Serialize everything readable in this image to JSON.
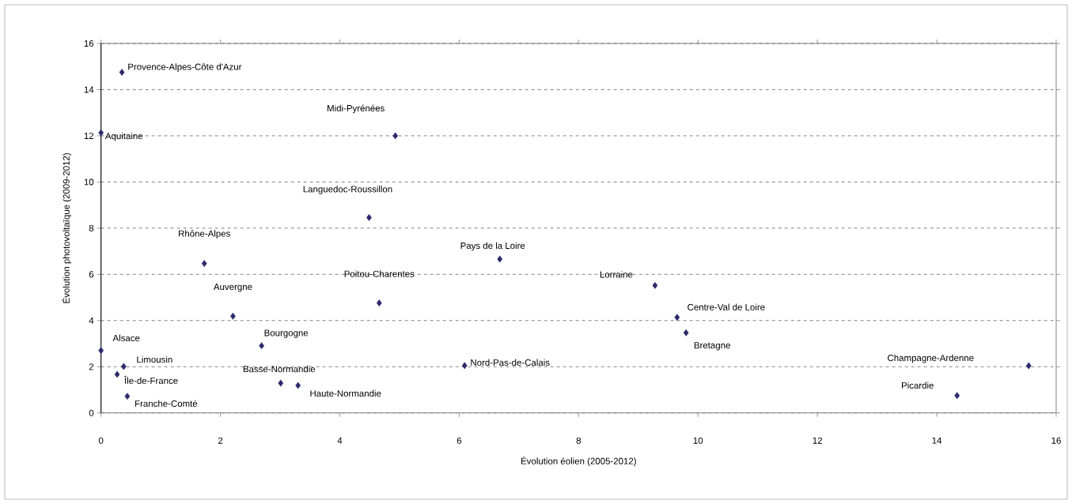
{
  "chart_data": {
    "type": "scatter",
    "xlabel": "Évolution éolien (2005-2012)",
    "ylabel": "Évolution photovoltaïque (2009-2012)",
    "x": [
      0.35,
      0,
      4.93,
      4.49,
      1.73,
      2.21,
      4.66,
      0,
      0.38,
      0.27,
      0.44,
      2.69,
      3.01,
      3.3,
      6.68,
      6.09,
      9.28,
      9.65,
      9.8,
      15.54,
      14.34
    ],
    "values": [
      14.75,
      12.13,
      12.0,
      8.46,
      6.47,
      4.19,
      4.76,
      2.7,
      2.01,
      1.67,
      0.72,
      2.91,
      1.29,
      1.19,
      6.66,
      2.05,
      5.52,
      4.14,
      3.47,
      2.04,
      0.75
    ],
    "color": "#2b2a6b",
    "marker": "diamond",
    "grid": "y",
    "xlim": [
      0,
      16
    ],
    "ylim": [
      0,
      16
    ],
    "xticks": [
      0,
      2,
      4,
      6,
      8,
      10,
      12,
      14,
      16
    ],
    "yticks": [
      0,
      2,
      4,
      6,
      8,
      10,
      12,
      14,
      16
    ],
    "annotations": [
      "Provence-Alpes-Côte d'Azur",
      "Aquitaine",
      "Midi-Pyrénées",
      "Languedoc-Roussillon",
      "Rhône-Alpes",
      "Auvergne",
      "Poitou-Charentes",
      "Alsace",
      "Limousin",
      "Île-de-France",
      "Franche-Comté",
      "Bourgogne",
      "Basse-Normandie",
      "Haute-Normandie",
      "Pays de la Loire",
      "Nord-Pas-de-Calais",
      "Lorraine",
      "Centre-Val de Loire",
      "Bretagne",
      "Champagne-Ardenne",
      "Picardie"
    ]
  }
}
